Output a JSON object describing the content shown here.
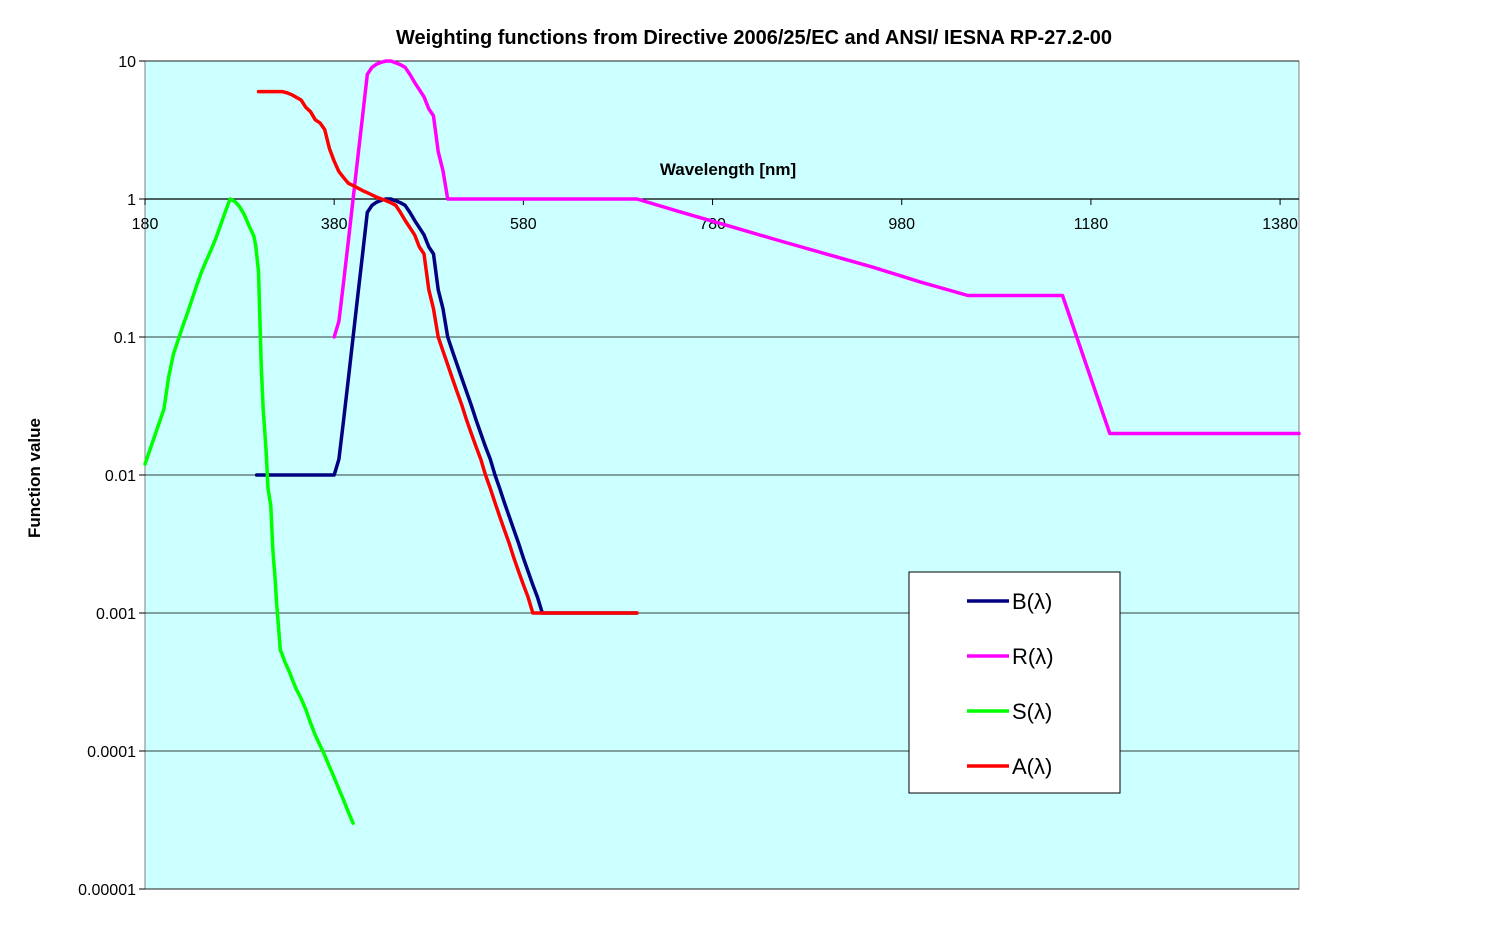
{
  "chart_data": {
    "type": "line",
    "title": "Weighting functions from Directive 2006/25/EC and ANSI/ IESNA RP-27.2-00",
    "xlabel": "Wavelength  [nm]",
    "ylabel": "Function value",
    "x_scale": "linear",
    "y_scale": "log",
    "xlim": [
      180,
      1400
    ],
    "ylim": [
      1e-05,
      10
    ],
    "x_ticks": [
      "180",
      "380",
      "580",
      "780",
      "980",
      "1180",
      "1380"
    ],
    "x_tick_values": [
      180,
      380,
      580,
      780,
      980,
      1180,
      1380
    ],
    "y_ticks": [
      "10",
      "1",
      "0.1",
      "0.01",
      "0.001",
      "0.0001",
      "0.00001"
    ],
    "y_tick_values": [
      10,
      1,
      0.1,
      0.01,
      0.001,
      0.0001,
      1e-05
    ],
    "grid": "horizontal",
    "legend_position": "lower-right",
    "background_color": "#ccffff",
    "series": [
      {
        "name": "B(λ)",
        "color": "#000080",
        "points": [
          [
            298,
            0.01
          ],
          [
            305,
            0.01
          ],
          [
            380,
            0.01
          ],
          [
            385,
            0.013
          ],
          [
            390,
            0.025
          ],
          [
            395,
            0.05
          ],
          [
            400,
            0.1
          ],
          [
            405,
            0.2
          ],
          [
            410,
            0.4
          ],
          [
            415,
            0.8
          ],
          [
            420,
            0.9
          ],
          [
            425,
            0.95
          ],
          [
            430,
            0.98
          ],
          [
            435,
            1.0
          ],
          [
            440,
            1.0
          ],
          [
            445,
            0.97
          ],
          [
            450,
            0.94
          ],
          [
            455,
            0.9
          ],
          [
            460,
            0.8
          ],
          [
            465,
            0.7
          ],
          [
            470,
            0.62
          ],
          [
            475,
            0.55
          ],
          [
            480,
            0.45
          ],
          [
            485,
            0.4
          ],
          [
            490,
            0.22
          ],
          [
            495,
            0.16
          ],
          [
            500,
            0.1
          ],
          [
            505,
            0.079
          ],
          [
            510,
            0.063
          ],
          [
            515,
            0.05
          ],
          [
            520,
            0.04
          ],
          [
            525,
            0.032
          ],
          [
            530,
            0.025
          ],
          [
            535,
            0.02
          ],
          [
            540,
            0.016
          ],
          [
            545,
            0.013
          ],
          [
            550,
            0.01
          ],
          [
            555,
            0.008
          ],
          [
            560,
            0.0063
          ],
          [
            565,
            0.005
          ],
          [
            570,
            0.004
          ],
          [
            575,
            0.0032
          ],
          [
            580,
            0.0025
          ],
          [
            585,
            0.002
          ],
          [
            590,
            0.0016
          ],
          [
            595,
            0.0013
          ],
          [
            600,
            0.001
          ],
          [
            700,
            0.001
          ]
        ]
      },
      {
        "name": "R(λ)",
        "color": "#ff00ff",
        "points": [
          [
            380,
            0.1
          ],
          [
            385,
            0.13
          ],
          [
            390,
            0.25
          ],
          [
            395,
            0.5
          ],
          [
            400,
            1.0
          ],
          [
            405,
            2.0
          ],
          [
            410,
            4.0
          ],
          [
            415,
            8.0
          ],
          [
            420,
            9.0
          ],
          [
            425,
            9.5
          ],
          [
            430,
            9.8
          ],
          [
            435,
            10.0
          ],
          [
            440,
            10.0
          ],
          [
            445,
            9.7
          ],
          [
            450,
            9.4
          ],
          [
            455,
            9.0
          ],
          [
            460,
            8.0
          ],
          [
            465,
            7.0
          ],
          [
            470,
            6.2
          ],
          [
            475,
            5.5
          ],
          [
            480,
            4.5
          ],
          [
            485,
            4.0
          ],
          [
            490,
            2.2
          ],
          [
            495,
            1.6
          ],
          [
            500,
            1.0
          ],
          [
            600,
            1.0
          ],
          [
            700,
            1.0
          ],
          [
            750,
            0.79
          ],
          [
            800,
            0.63
          ],
          [
            850,
            0.5
          ],
          [
            900,
            0.4
          ],
          [
            950,
            0.32
          ],
          [
            1000,
            0.25
          ],
          [
            1050,
            0.2
          ],
          [
            1100,
            0.2
          ],
          [
            1150,
            0.2
          ],
          [
            1200,
            0.02
          ],
          [
            1400,
            0.02
          ]
        ]
      },
      {
        "name": "S(λ)",
        "color": "#00ff00",
        "points": [
          [
            180,
            0.012
          ],
          [
            190,
            0.019
          ],
          [
            200,
            0.03
          ],
          [
            205,
            0.051
          ],
          [
            210,
            0.075
          ],
          [
            215,
            0.095
          ],
          [
            220,
            0.12
          ],
          [
            225,
            0.15
          ],
          [
            230,
            0.19
          ],
          [
            235,
            0.24
          ],
          [
            240,
            0.3
          ],
          [
            245,
            0.36
          ],
          [
            250,
            0.43
          ],
          [
            255,
            0.52
          ],
          [
            260,
            0.65
          ],
          [
            265,
            0.81
          ],
          [
            270,
            1.0
          ],
          [
            275,
            0.96
          ],
          [
            280,
            0.88
          ],
          [
            285,
            0.77
          ],
          [
            290,
            0.64
          ],
          [
            295,
            0.54
          ],
          [
            297,
            0.46
          ],
          [
            300,
            0.3
          ],
          [
            303,
            0.06
          ],
          [
            305,
            0.03
          ],
          [
            308,
            0.015
          ],
          [
            310,
            0.008
          ],
          [
            313,
            0.006
          ],
          [
            315,
            0.003
          ],
          [
            316,
            0.0024
          ],
          [
            317,
            0.002
          ],
          [
            318,
            0.0016
          ],
          [
            319,
            0.0012
          ],
          [
            320,
            0.001
          ],
          [
            322,
            0.00067
          ],
          [
            323,
            0.00054
          ],
          [
            325,
            0.0005
          ],
          [
            328,
            0.00044
          ],
          [
            330,
            0.00041
          ],
          [
            333,
            0.00037
          ],
          [
            335,
            0.00034
          ],
          [
            340,
            0.00028
          ],
          [
            345,
            0.00024
          ],
          [
            350,
            0.0002
          ],
          [
            355,
            0.00016
          ],
          [
            360,
            0.00013
          ],
          [
            365,
            0.00011
          ],
          [
            370,
            9.3e-05
          ],
          [
            375,
            7.7e-05
          ],
          [
            380,
            6.4e-05
          ],
          [
            385,
            5.3e-05
          ],
          [
            390,
            4.4e-05
          ],
          [
            395,
            3.6e-05
          ],
          [
            400,
            3e-05
          ]
        ]
      },
      {
        "name": "A(λ)",
        "color": "#ff0000",
        "points": [
          [
            300,
            6.0
          ],
          [
            305,
            6.0
          ],
          [
            310,
            6.0
          ],
          [
            315,
            6.0
          ],
          [
            320,
            6.0
          ],
          [
            325,
            6.0
          ],
          [
            330,
            5.88
          ],
          [
            335,
            5.71
          ],
          [
            340,
            5.46
          ],
          [
            345,
            5.22
          ],
          [
            350,
            4.62
          ],
          [
            355,
            4.29
          ],
          [
            360,
            3.75
          ],
          [
            365,
            3.56
          ],
          [
            370,
            3.19
          ],
          [
            375,
            2.31
          ],
          [
            380,
            1.88
          ],
          [
            385,
            1.58
          ],
          [
            390,
            1.43
          ],
          [
            395,
            1.3
          ],
          [
            400,
            1.25
          ],
          [
            405,
            1.2
          ],
          [
            410,
            1.15
          ],
          [
            415,
            1.11
          ],
          [
            420,
            1.07
          ],
          [
            425,
            1.03
          ],
          [
            430,
            1.0
          ],
          [
            435,
            0.97
          ],
          [
            440,
            0.94
          ],
          [
            445,
            0.9
          ],
          [
            450,
            0.8
          ],
          [
            455,
            0.7
          ],
          [
            460,
            0.62
          ],
          [
            465,
            0.55
          ],
          [
            470,
            0.45
          ],
          [
            475,
            0.4
          ],
          [
            480,
            0.22
          ],
          [
            485,
            0.16
          ],
          [
            490,
            0.1
          ],
          [
            495,
            0.079
          ],
          [
            500,
            0.063
          ],
          [
            505,
            0.05
          ],
          [
            510,
            0.04
          ],
          [
            515,
            0.032
          ],
          [
            520,
            0.025
          ],
          [
            525,
            0.02
          ],
          [
            530,
            0.016
          ],
          [
            535,
            0.013
          ],
          [
            540,
            0.01
          ],
          [
            545,
            0.008
          ],
          [
            550,
            0.0063
          ],
          [
            555,
            0.005
          ],
          [
            560,
            0.004
          ],
          [
            565,
            0.0032
          ],
          [
            570,
            0.0025
          ],
          [
            575,
            0.002
          ],
          [
            580,
            0.0016
          ],
          [
            585,
            0.0013
          ],
          [
            590,
            0.001
          ],
          [
            600,
            0.001
          ],
          [
            610,
            0.001
          ],
          [
            620,
            0.001
          ],
          [
            630,
            0.001
          ],
          [
            640,
            0.001
          ],
          [
            650,
            0.001
          ],
          [
            660,
            0.001
          ],
          [
            670,
            0.001
          ],
          [
            680,
            0.001
          ],
          [
            690,
            0.001
          ],
          [
            700,
            0.001
          ]
        ]
      }
    ]
  }
}
